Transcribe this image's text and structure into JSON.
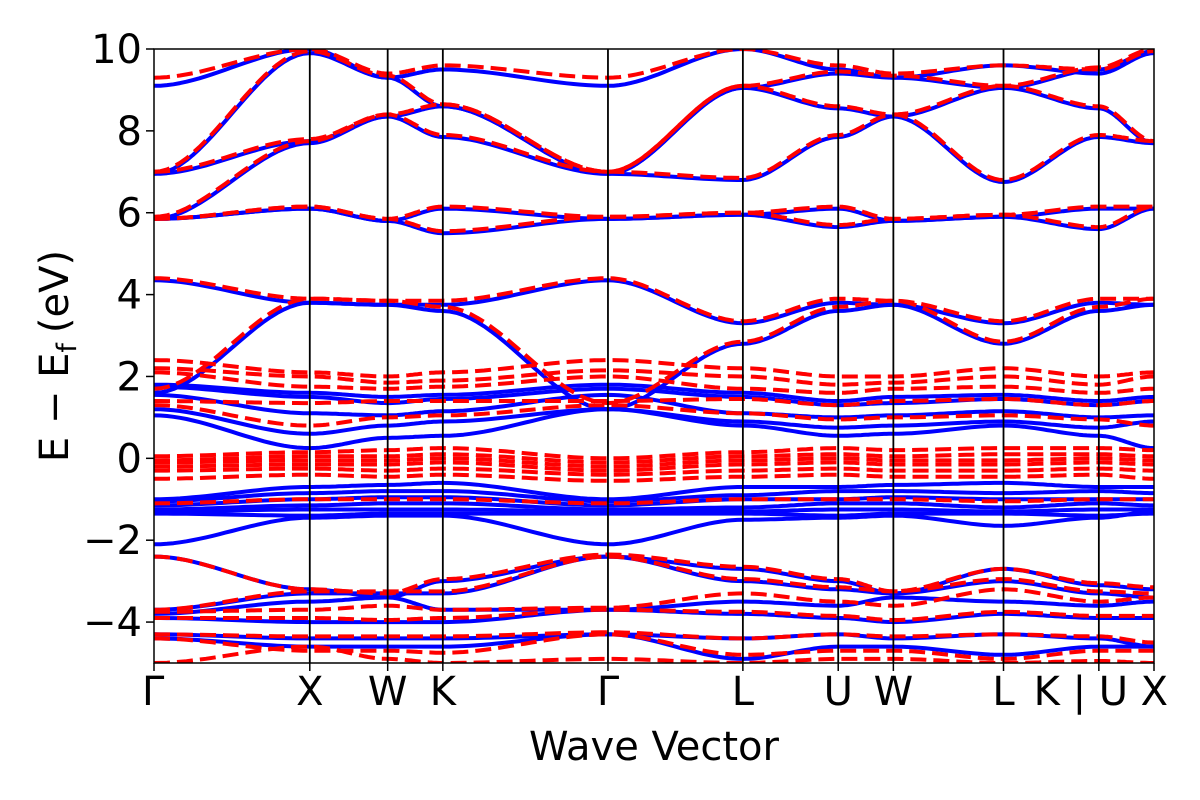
{
  "chart_data": {
    "type": "line",
    "title": "",
    "xlabel": "Wave Vector",
    "ylabel": "E − E",
    "ylabel_subscript": "f",
    "ylabel_unit": "(eV)",
    "ylim": [
      -5,
      10
    ],
    "yticks": [
      {
        "value": -4,
        "label": "−4"
      },
      {
        "value": -2,
        "label": "−2"
      },
      {
        "value": 0,
        "label": "0"
      },
      {
        "value": 2,
        "label": "2"
      },
      {
        "value": 4,
        "label": "4"
      },
      {
        "value": 6,
        "label": "6"
      },
      {
        "value": 8,
        "label": "8"
      },
      {
        "value": 10,
        "label": "10"
      }
    ],
    "kpath": [
      {
        "label": "Γ",
        "x": 0.0
      },
      {
        "label": "X",
        "x": 1.0
      },
      {
        "label": "W",
        "x": 1.5
      },
      {
        "label": "K",
        "x": 1.854
      },
      {
        "label": "Γ",
        "x": 2.914
      },
      {
        "label": "L",
        "x": 3.78
      },
      {
        "label": "U",
        "x": 4.392
      },
      {
        "label": "W",
        "x": 4.746
      },
      {
        "label": "L",
        "x": 5.453
      },
      {
        "label": "K | U",
        "x": 6.065
      },
      {
        "label": "X",
        "x": 6.419
      }
    ],
    "xlim": [
      0,
      6.419
    ],
    "grid": false,
    "colors": {
      "series_a": "#0000ff",
      "series_b": "#ff0000",
      "axis": "#000000"
    },
    "series": [
      {
        "style": "solid",
        "color": "#0000ff",
        "bands": [
          [
            9.1,
            10.0,
            9.3,
            9.5,
            9.1,
            10.0,
            9.5,
            9.3,
            9.6,
            9.4,
            9.9
          ],
          [
            6.95,
            7.75,
            8.35,
            8.6,
            6.95,
            9.05,
            9.4,
            9.3,
            9.05,
            9.5,
            9.95
          ],
          [
            6.95,
            9.9,
            9.3,
            8.6,
            6.95,
            6.8,
            7.85,
            8.35,
            6.75,
            7.85,
            7.7
          ],
          [
            5.85,
            7.7,
            8.35,
            7.85,
            6.95,
            9.05,
            8.55,
            8.35,
            9.05,
            8.55,
            7.7
          ],
          [
            5.85,
            6.1,
            5.8,
            6.1,
            5.85,
            5.95,
            5.65,
            5.8,
            5.9,
            5.6,
            6.1
          ],
          [
            5.85,
            6.1,
            5.8,
            5.5,
            5.85,
            5.95,
            6.1,
            5.8,
            5.9,
            6.1,
            6.1
          ],
          [
            4.35,
            3.8,
            3.75,
            3.75,
            4.35,
            3.3,
            3.8,
            3.75,
            3.3,
            3.8,
            3.75
          ],
          [
            1.6,
            3.8,
            3.75,
            3.6,
            1.2,
            2.8,
            3.6,
            3.75,
            2.8,
            3.6,
            3.75
          ],
          [
            1.8,
            1.6,
            1.5,
            1.55,
            1.8,
            1.6,
            1.4,
            1.5,
            1.55,
            1.4,
            1.5
          ],
          [
            1.75,
            1.5,
            1.35,
            1.45,
            1.7,
            1.5,
            1.3,
            1.35,
            1.45,
            1.3,
            1.4
          ],
          [
            1.55,
            1.1,
            1.05,
            1.15,
            1.55,
            1.1,
            1.0,
            1.05,
            1.15,
            1.0,
            1.05
          ],
          [
            1.2,
            0.6,
            0.8,
            0.9,
            1.2,
            0.9,
            0.75,
            0.8,
            0.9,
            0.75,
            0.9
          ],
          [
            1.05,
            0.25,
            0.5,
            0.55,
            1.2,
            0.8,
            0.55,
            0.6,
            0.8,
            0.55,
            0.25
          ],
          [
            -1.0,
            -0.7,
            -0.65,
            -0.6,
            -1.0,
            -0.7,
            -0.7,
            -0.65,
            -0.6,
            -0.7,
            -0.7
          ],
          [
            -1.05,
            -0.85,
            -0.8,
            -0.8,
            -1.05,
            -0.9,
            -0.8,
            -0.8,
            -0.85,
            -0.8,
            -0.85
          ],
          [
            -1.15,
            -1.0,
            -0.95,
            -0.95,
            -1.15,
            -1.0,
            -1.0,
            -0.95,
            -1.0,
            -1.0,
            -1.0
          ],
          [
            -1.25,
            -1.15,
            -1.1,
            -1.1,
            -1.25,
            -1.2,
            -1.1,
            -1.1,
            -1.2,
            -1.1,
            -1.15
          ],
          [
            -1.3,
            -1.25,
            -1.25,
            -1.25,
            -1.3,
            -1.3,
            -1.25,
            -1.25,
            -1.3,
            -1.25,
            -1.25
          ],
          [
            -1.35,
            -1.4,
            -1.35,
            -1.35,
            -1.35,
            -1.35,
            -1.4,
            -1.35,
            -1.35,
            -1.4,
            -1.35
          ],
          [
            -2.1,
            -1.45,
            -1.4,
            -1.4,
            -2.1,
            -1.5,
            -1.45,
            -1.4,
            -1.65,
            -1.45,
            -1.3
          ],
          [
            -2.4,
            -3.2,
            -3.4,
            -3.0,
            -2.4,
            -2.7,
            -3.0,
            -3.3,
            -2.7,
            -3.1,
            -3.2
          ],
          [
            -3.7,
            -3.3,
            -3.3,
            -3.3,
            -2.4,
            -3.0,
            -3.2,
            -3.3,
            -3.0,
            -3.3,
            -3.4
          ],
          [
            -3.8,
            -3.5,
            -3.4,
            -3.7,
            -3.7,
            -3.5,
            -3.6,
            -3.4,
            -3.5,
            -3.6,
            -3.5
          ],
          [
            -3.9,
            -4.0,
            -4.0,
            -4.0,
            -3.7,
            -3.8,
            -3.9,
            -4.0,
            -3.8,
            -3.9,
            -3.9
          ],
          [
            -4.3,
            -4.4,
            -4.4,
            -4.4,
            -4.3,
            -4.4,
            -4.3,
            -4.4,
            -4.3,
            -4.4,
            -4.6
          ],
          [
            -4.4,
            -4.6,
            -4.6,
            -4.6,
            -4.3,
            -4.9,
            -4.6,
            -4.6,
            -4.8,
            -4.6,
            -4.6
          ]
        ]
      },
      {
        "style": "dashed",
        "color": "#ff0000",
        "bands": [
          [
            9.3,
            10.0,
            9.4,
            9.6,
            9.3,
            10.0,
            9.6,
            9.4,
            9.6,
            9.5,
            9.95
          ],
          [
            7.0,
            7.8,
            8.4,
            8.65,
            7.0,
            9.1,
            9.45,
            9.35,
            9.1,
            9.55,
            10.0
          ],
          [
            7.0,
            9.95,
            9.35,
            8.65,
            7.0,
            6.85,
            7.9,
            8.4,
            6.8,
            7.9,
            7.75
          ],
          [
            5.9,
            7.75,
            8.4,
            7.9,
            7.0,
            9.1,
            8.6,
            8.4,
            9.1,
            8.6,
            7.75
          ],
          [
            5.85,
            6.15,
            5.85,
            6.15,
            5.9,
            6.0,
            5.7,
            5.85,
            5.95,
            5.65,
            6.15
          ],
          [
            5.85,
            6.15,
            5.85,
            5.55,
            5.9,
            6.0,
            6.15,
            5.85,
            5.95,
            6.15,
            6.15
          ],
          [
            4.4,
            3.9,
            3.85,
            3.85,
            4.4,
            3.35,
            3.9,
            3.85,
            3.35,
            3.9,
            3.9
          ],
          [
            1.7,
            3.9,
            3.85,
            3.7,
            1.35,
            2.85,
            3.7,
            3.85,
            2.85,
            3.7,
            3.9
          ],
          [
            2.4,
            2.1,
            2.0,
            2.1,
            2.4,
            2.2,
            2.0,
            2.0,
            2.2,
            2.0,
            2.1
          ],
          [
            2.2,
            2.0,
            1.85,
            1.9,
            2.15,
            2.0,
            1.8,
            1.85,
            2.0,
            1.8,
            2.0
          ],
          [
            2.1,
            1.75,
            1.7,
            1.75,
            2.0,
            1.7,
            1.6,
            1.7,
            1.75,
            1.6,
            1.7
          ],
          [
            1.4,
            1.35,
            1.4,
            1.4,
            1.4,
            1.45,
            1.3,
            1.4,
            1.45,
            1.3,
            1.4
          ],
          [
            1.3,
            0.8,
            1.0,
            1.05,
            1.3,
            1.1,
            0.95,
            1.0,
            1.05,
            0.95,
            0.8
          ],
          [
            0.05,
            0.15,
            0.2,
            0.25,
            0.0,
            0.15,
            0.25,
            0.2,
            0.25,
            0.25,
            0.2
          ],
          [
            -0.05,
            0.05,
            0.05,
            0.1,
            -0.1,
            0.05,
            0.1,
            0.05,
            0.1,
            0.1,
            0.05
          ],
          [
            -0.1,
            -0.05,
            -0.05,
            0.0,
            -0.2,
            -0.05,
            0.0,
            -0.05,
            -0.05,
            0.0,
            -0.05
          ],
          [
            -0.2,
            -0.15,
            -0.15,
            -0.1,
            -0.3,
            -0.15,
            -0.1,
            -0.15,
            -0.15,
            -0.1,
            -0.15
          ],
          [
            -0.3,
            -0.25,
            -0.3,
            -0.25,
            -0.4,
            -0.3,
            -0.25,
            -0.3,
            -0.3,
            -0.25,
            -0.3
          ],
          [
            -0.5,
            -0.4,
            -0.45,
            -0.4,
            -0.55,
            -0.45,
            -0.4,
            -0.45,
            -0.45,
            -0.4,
            -0.5
          ],
          [
            -1.1,
            -1.0,
            -1.0,
            -1.0,
            -1.1,
            -1.0,
            -1.0,
            -1.0,
            -1.05,
            -1.0,
            -1.0
          ],
          [
            -2.4,
            -3.2,
            -3.3,
            -2.95,
            -2.35,
            -2.65,
            -2.95,
            -3.25,
            -2.7,
            -3.05,
            -3.15
          ],
          [
            -3.7,
            -3.25,
            -3.25,
            -3.25,
            -2.4,
            -2.95,
            -3.15,
            -3.25,
            -2.95,
            -3.25,
            -3.3
          ],
          [
            -3.75,
            -3.7,
            -3.6,
            -3.7,
            -3.65,
            -3.3,
            -3.5,
            -3.6,
            -3.2,
            -3.5,
            -3.4
          ],
          [
            -3.9,
            -3.9,
            -3.95,
            -3.9,
            -3.7,
            -3.75,
            -3.85,
            -3.95,
            -3.75,
            -3.85,
            -3.85
          ],
          [
            -4.3,
            -4.35,
            -4.35,
            -4.35,
            -4.25,
            -4.4,
            -4.3,
            -4.35,
            -4.3,
            -4.35,
            -4.5
          ],
          [
            -4.4,
            -4.7,
            -4.7,
            -4.75,
            -4.3,
            -4.8,
            -4.7,
            -4.7,
            -4.9,
            -4.7,
            -4.7
          ],
          [
            -5.0,
            -4.6,
            -4.9,
            -5.0,
            -4.9,
            -5.0,
            -4.9,
            -4.9,
            -5.0,
            -4.95,
            -5.0
          ]
        ]
      }
    ]
  }
}
